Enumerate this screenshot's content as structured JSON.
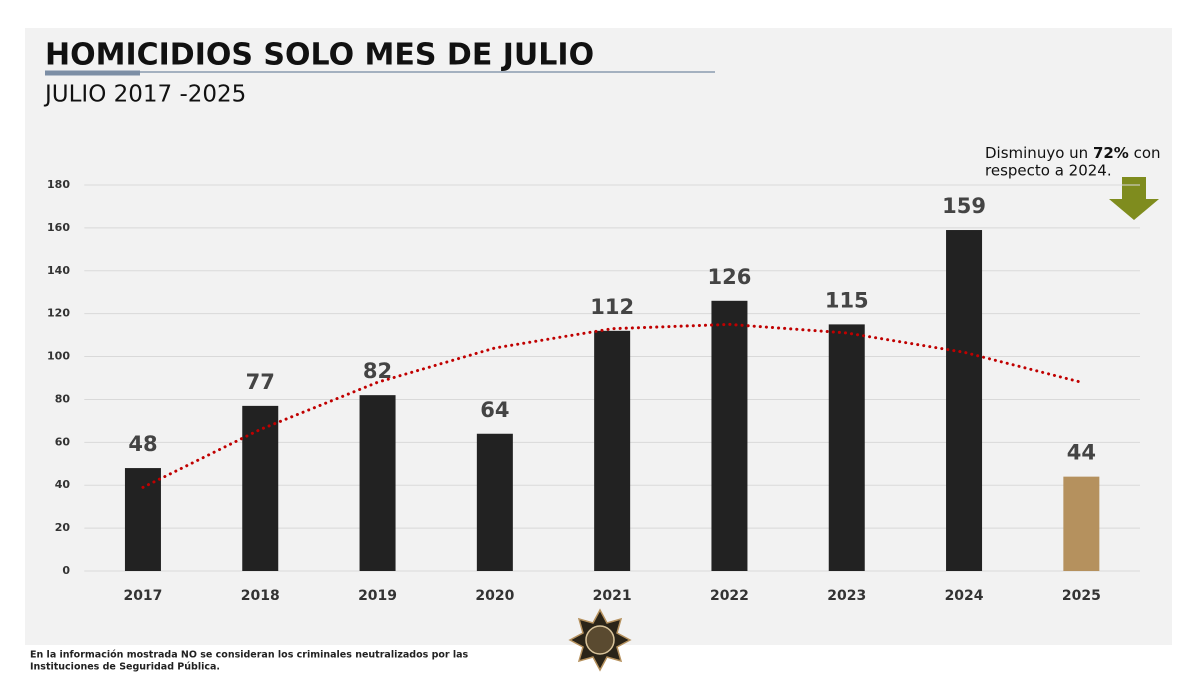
{
  "chart_data": {
    "type": "bar",
    "title": "HOMICIDIOS SOLO MES DE JULIO",
    "subtitle": "JULIO 2017 -2025",
    "categories": [
      "2017",
      "2018",
      "2019",
      "2020",
      "2021",
      "2022",
      "2023",
      "2024",
      "2025"
    ],
    "values": [
      48,
      77,
      82,
      64,
      112,
      126,
      115,
      159,
      44
    ],
    "colors": [
      "#222222",
      "#222222",
      "#222222",
      "#222222",
      "#222222",
      "#222222",
      "#222222",
      "#222222",
      "#b5915e"
    ],
    "ylim": [
      0,
      180
    ],
    "yticks": [
      0,
      20,
      40,
      60,
      80,
      100,
      120,
      140,
      160,
      180
    ],
    "grid": true,
    "trendline": {
      "values": [
        39,
        66,
        88,
        104,
        113,
        115,
        111,
        102,
        88
      ],
      "color": "#c00000",
      "style": "dotted"
    },
    "annotation": {
      "parts": [
        "Disminuyo un ",
        "72%",
        " con"
      ],
      "line2": "respecto a 2024.",
      "arrow_color": "#7f8c1e"
    },
    "footnote": [
      "En la información mostrada NO se consideran los criminales neutralizados por las",
      "Instituciones de Seguridad Pública."
    ]
  }
}
